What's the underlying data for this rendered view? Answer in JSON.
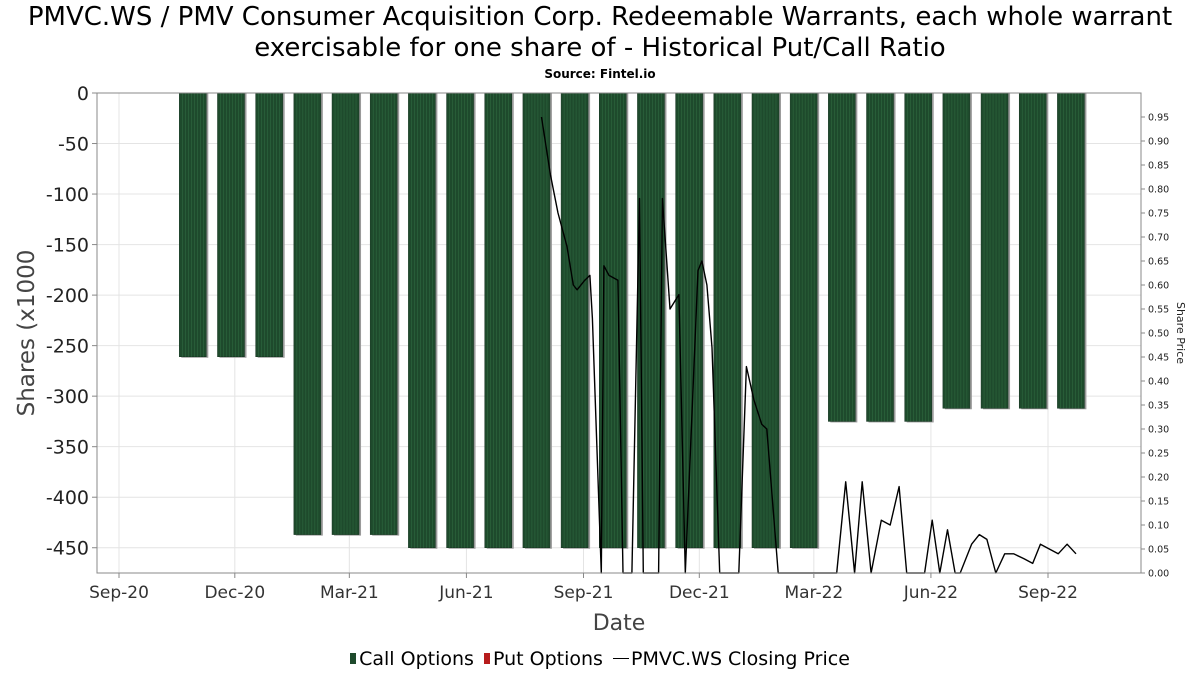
{
  "title": "PMVC.WS / PMV Consumer Acquisition Corp. Redeemable Warrants, each whole warrant exercisable for one share of - Historical Put/Call Ratio",
  "subtitle": "Source: Fintel.io",
  "chart_data": {
    "type": "bar",
    "xlabel": "Date",
    "ylabel": "Shares (x1000",
    "y2label": "Share Price",
    "ylim": [
      -475,
      0
    ],
    "y2lim": [
      0,
      1.0
    ],
    "y_ticks": [
      "0",
      "-50",
      "-100",
      "-150",
      "-200",
      "-250",
      "-300",
      "-350",
      "-400",
      "-450"
    ],
    "y2_ticks": [
      "0.95",
      "0.90",
      "0.85",
      "0.80",
      "0.75",
      "0.70",
      "0.65",
      "0.60",
      "0.55",
      "0.50",
      "0.45",
      "0.40",
      "0.35",
      "0.30",
      "0.25",
      "0.20",
      "0.15",
      "0.10",
      "0.05",
      "0.00"
    ],
    "x_ticks": [
      "Sep-20",
      "Dec-20",
      "Mar-21",
      "Jun-21",
      "Sep-21",
      "Dec-21",
      "Mar-22",
      "Jun-22",
      "Sep-22"
    ],
    "grid": true,
    "legend": "bottom",
    "colors": {
      "call": "#1e4a2c",
      "put": "#b71c1c",
      "price": "#000000"
    },
    "categories": [
      "2020-10-29",
      "2020-11-28",
      "2020-12-28",
      "2021-01-27",
      "2021-02-26",
      "2021-03-28",
      "2021-04-27",
      "2021-05-27",
      "2021-06-26",
      "2021-07-26",
      "2021-08-25",
      "2021-09-24",
      "2021-10-24",
      "2021-11-23",
      "2021-12-23",
      "2022-01-22",
      "2022-02-21",
      "2022-03-23",
      "2022-04-22",
      "2022-05-22",
      "2022-06-21",
      "2022-07-21",
      "2022-08-20",
      "2022-09-19"
    ],
    "series": [
      {
        "name": "Call Options",
        "values": [
          -261,
          -261,
          -261,
          -437,
          -437,
          -437,
          -450,
          -450,
          -450,
          -450,
          -450,
          -450,
          -450,
          -450,
          -450,
          -450,
          -450,
          -325,
          -325,
          -325,
          -312,
          -312,
          -312,
          -312
        ]
      },
      {
        "name": "Put Options",
        "values": [
          0,
          0,
          0,
          0,
          0,
          0,
          0,
          0,
          0,
          0,
          0,
          0,
          0,
          0,
          0,
          0,
          0,
          0,
          0,
          0,
          0,
          0,
          0,
          0
        ]
      },
      {
        "name": "PMVC.WS Closing Price",
        "points": [
          [
            "2021-07-30",
            0.95
          ],
          [
            "2021-08-06",
            0.83
          ],
          [
            "2021-08-12",
            0.75
          ],
          [
            "2021-08-19",
            0.68
          ],
          [
            "2021-08-24",
            0.6
          ],
          [
            "2021-08-27",
            0.59
          ],
          [
            "2021-09-02",
            0.61
          ],
          [
            "2021-09-06",
            0.62
          ],
          [
            "2021-09-08",
            0.53
          ],
          [
            "2021-09-15",
            0.0
          ],
          [
            "2021-09-17",
            0.64
          ],
          [
            "2021-09-21",
            0.62
          ],
          [
            "2021-09-28",
            0.61
          ],
          [
            "2021-10-02",
            0.0
          ],
          [
            "2021-10-09",
            0.0
          ],
          [
            "2021-10-15",
            0.78
          ],
          [
            "2021-10-18",
            0.0
          ],
          [
            "2021-10-25",
            0.0
          ],
          [
            "2021-10-30",
            0.0
          ],
          [
            "2021-11-02",
            0.78
          ],
          [
            "2021-11-08",
            0.55
          ],
          [
            "2021-11-15",
            0.58
          ],
          [
            "2021-11-20",
            0.0
          ],
          [
            "2021-11-30",
            0.63
          ],
          [
            "2021-12-03",
            0.65
          ],
          [
            "2021-12-07",
            0.6
          ],
          [
            "2021-12-11",
            0.47
          ],
          [
            "2021-12-17",
            0.0
          ],
          [
            "2022-01-01",
            0.0
          ],
          [
            "2022-01-07",
            0.43
          ],
          [
            "2022-01-13",
            0.36
          ],
          [
            "2022-01-19",
            0.31
          ],
          [
            "2022-01-23",
            0.3
          ],
          [
            "2022-02-01",
            0.0
          ],
          [
            "2022-02-17",
            0.0
          ],
          [
            "2022-03-11",
            0.0
          ],
          [
            "2022-03-19",
            0.0
          ],
          [
            "2022-03-26",
            0.19
          ],
          [
            "2022-04-02",
            0.0
          ],
          [
            "2022-04-08",
            0.19
          ],
          [
            "2022-04-15",
            0.0
          ],
          [
            "2022-04-23",
            0.11
          ],
          [
            "2022-04-30",
            0.1
          ],
          [
            "2022-05-07",
            0.18
          ],
          [
            "2022-05-13",
            0.0
          ],
          [
            "2022-05-27",
            0.0
          ],
          [
            "2022-06-02",
            0.11
          ],
          [
            "2022-06-08",
            0.0
          ],
          [
            "2022-06-14",
            0.09
          ],
          [
            "2022-06-20",
            0.0
          ],
          [
            "2022-06-24",
            0.0
          ],
          [
            "2022-07-03",
            0.06
          ],
          [
            "2022-07-09",
            0.08
          ],
          [
            "2022-07-15",
            0.07
          ],
          [
            "2022-07-22",
            0.0
          ],
          [
            "2022-07-29",
            0.04
          ],
          [
            "2022-08-05",
            0.04
          ],
          [
            "2022-08-13",
            0.03
          ],
          [
            "2022-08-20",
            0.02
          ],
          [
            "2022-08-26",
            0.06
          ],
          [
            "2022-09-02",
            0.05
          ],
          [
            "2022-09-09",
            0.04
          ],
          [
            "2022-09-16",
            0.06
          ],
          [
            "2022-09-23",
            0.04
          ]
        ]
      }
    ]
  },
  "legend_items": [
    {
      "label": "Call Options",
      "color": "#1e4a2c"
    },
    {
      "label": "Put Options",
      "color": "#b71c1c"
    },
    {
      "label": "PMVC.WS Closing Price",
      "color": "#000000"
    }
  ]
}
